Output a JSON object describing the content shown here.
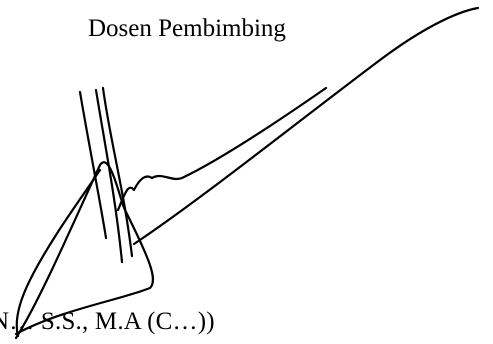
{
  "document": {
    "heading": "Dosen Pembimbing",
    "signer_name_visible": "N… S.S., M.A (C…))"
  },
  "signature": {
    "kind": "handwritten-signature",
    "ink_color": "#000000"
  }
}
